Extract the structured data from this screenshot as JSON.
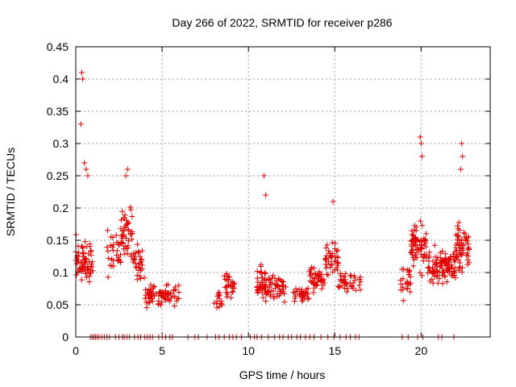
{
  "chart_data": {
    "type": "scatter",
    "title": "Day 266 of 2022, SRMTID for receiver p286",
    "xlabel": "GPS time / hours",
    "ylabel": "SRMTID / TECUs",
    "xlim": [
      0,
      24
    ],
    "ylim": [
      0,
      0.45
    ],
    "x_ticks": [
      0,
      5,
      10,
      15,
      20
    ],
    "x_tick_labels": [
      "0",
      "5",
      "10",
      "15",
      "20"
    ],
    "y_ticks": [
      0,
      0.05,
      0.1,
      0.15,
      0.2,
      0.25,
      0.3,
      0.35,
      0.4,
      0.45
    ],
    "y_tick_labels": [
      "0",
      "0.05",
      "0.1",
      "0.15",
      "0.2",
      "0.25",
      "0.3",
      "0.35",
      "0.4",
      "0.45"
    ],
    "grid": true,
    "marker": "+",
    "series_color": "#e00000",
    "series": [
      {
        "name": "SRMTID",
        "clusters": [
          {
            "x_range": [
              0.0,
              1.0
            ],
            "y_center": 0.12,
            "y_spread": 0.05,
            "count": 70
          },
          {
            "x_range": [
              1.8,
              2.6
            ],
            "y_center": 0.13,
            "y_spread": 0.04,
            "count": 30
          },
          {
            "x_range": [
              2.6,
              3.3
            ],
            "y_center": 0.16,
            "y_spread": 0.05,
            "count": 45
          },
          {
            "x_range": [
              3.3,
              4.0
            ],
            "y_center": 0.11,
            "y_spread": 0.04,
            "count": 30
          },
          {
            "x_range": [
              4.0,
              6.0
            ],
            "y_center": 0.065,
            "y_spread": 0.025,
            "count": 80
          },
          {
            "x_range": [
              8.0,
              8.5
            ],
            "y_center": 0.06,
            "y_spread": 0.02,
            "count": 15
          },
          {
            "x_range": [
              8.6,
              9.2
            ],
            "y_center": 0.08,
            "y_spread": 0.03,
            "count": 30
          },
          {
            "x_range": [
              10.5,
              11.2
            ],
            "y_center": 0.08,
            "y_spread": 0.04,
            "count": 45
          },
          {
            "x_range": [
              11.2,
              12.2
            ],
            "y_center": 0.075,
            "y_spread": 0.025,
            "count": 45
          },
          {
            "x_range": [
              12.6,
              13.5
            ],
            "y_center": 0.065,
            "y_spread": 0.02,
            "count": 30
          },
          {
            "x_range": [
              13.5,
              14.4
            ],
            "y_center": 0.09,
            "y_spread": 0.03,
            "count": 40
          },
          {
            "x_range": [
              14.4,
              15.2
            ],
            "y_center": 0.12,
            "y_spread": 0.04,
            "count": 40
          },
          {
            "x_range": [
              15.2,
              16.5
            ],
            "y_center": 0.085,
            "y_spread": 0.025,
            "count": 40
          },
          {
            "x_range": [
              18.8,
              19.4
            ],
            "y_center": 0.09,
            "y_spread": 0.04,
            "count": 25
          },
          {
            "x_range": [
              19.4,
              20.3
            ],
            "y_center": 0.14,
            "y_spread": 0.05,
            "count": 70
          },
          {
            "x_range": [
              20.3,
              22.0
            ],
            "y_center": 0.11,
            "y_spread": 0.035,
            "count": 110
          },
          {
            "x_range": [
              22.0,
              22.8
            ],
            "y_center": 0.14,
            "y_spread": 0.05,
            "count": 60
          }
        ],
        "outliers": [
          {
            "x": 0.35,
            "y": 0.41
          },
          {
            "x": 0.4,
            "y": 0.4
          },
          {
            "x": 0.3,
            "y": 0.33
          },
          {
            "x": 0.5,
            "y": 0.27
          },
          {
            "x": 0.6,
            "y": 0.26
          },
          {
            "x": 0.7,
            "y": 0.25
          },
          {
            "x": 3.0,
            "y": 0.26
          },
          {
            "x": 2.9,
            "y": 0.25
          },
          {
            "x": 10.9,
            "y": 0.25
          },
          {
            "x": 11.0,
            "y": 0.22
          },
          {
            "x": 14.9,
            "y": 0.21
          },
          {
            "x": 19.95,
            "y": 0.31
          },
          {
            "x": 20.0,
            "y": 0.3
          },
          {
            "x": 20.05,
            "y": 0.28
          },
          {
            "x": 22.35,
            "y": 0.3
          },
          {
            "x": 22.4,
            "y": 0.28
          },
          {
            "x": 22.3,
            "y": 0.26
          }
        ],
        "zero_x": [
          0.85,
          0.95,
          1.05,
          1.15,
          1.25,
          1.35,
          1.5,
          1.65,
          1.8,
          1.95,
          2.3,
          2.5,
          2.7,
          2.8,
          2.95,
          3.1,
          3.4,
          3.6,
          3.75,
          4.0,
          4.15,
          4.3,
          4.45,
          4.8,
          5.0,
          5.2,
          5.45,
          5.6,
          6.5,
          6.9,
          7.1,
          7.6,
          8.1,
          8.3,
          8.6,
          8.9,
          9.1,
          9.3,
          9.6,
          10.1,
          10.35,
          10.5,
          10.75,
          11.15,
          11.5,
          11.8,
          12.0,
          12.3,
          12.5,
          12.8,
          13.0,
          13.3,
          13.55,
          13.8,
          14.2,
          14.6,
          14.95,
          15.3,
          15.65,
          15.9,
          16.2,
          16.4,
          18.9,
          19.25,
          19.8,
          20.1,
          21.0,
          21.2,
          21.9
        ]
      }
    ]
  }
}
